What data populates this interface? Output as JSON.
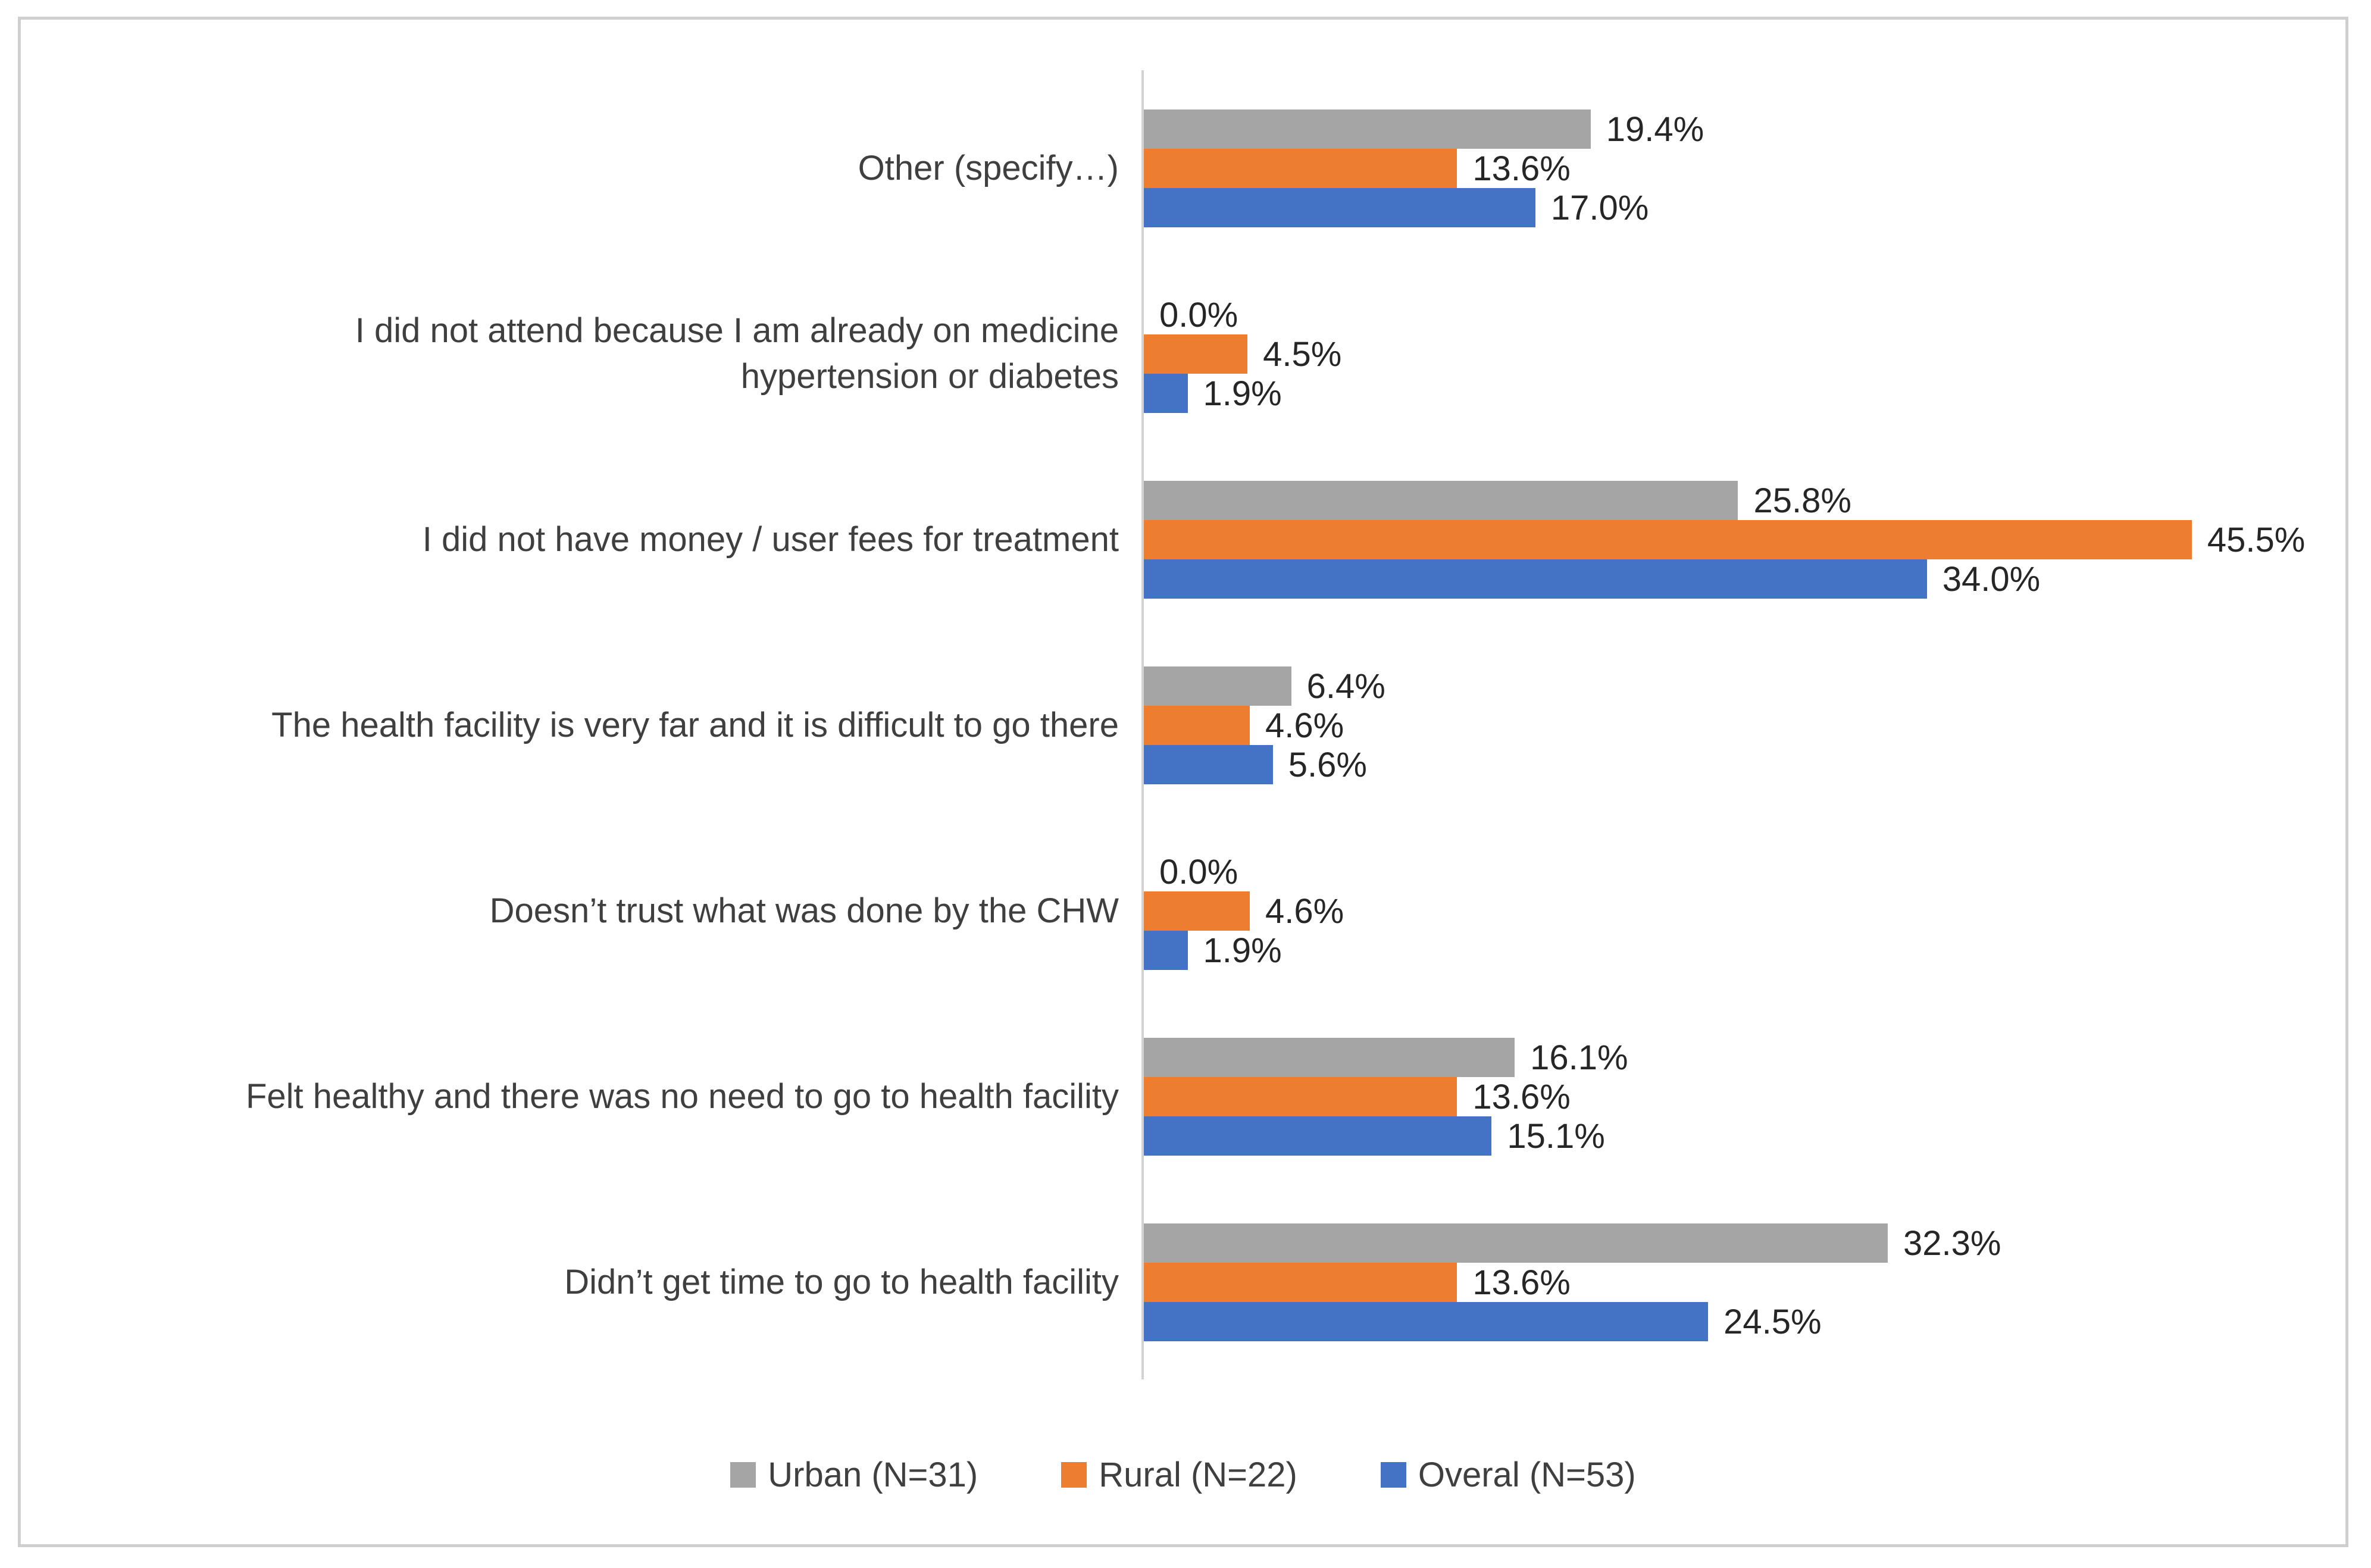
{
  "chart_data": {
    "type": "bar",
    "orientation": "horizontal",
    "title": "",
    "xlabel": "",
    "ylabel": "",
    "xlim": [
      0,
      52
    ],
    "grid": false,
    "axis_ticks_visible": false,
    "legend_position": "bottom",
    "value_label_format": "0.0%",
    "categories": [
      "Other (specify…)",
      "I did not attend because I am already on medicine\nhypertension or diabetes",
      "I did not have money / user fees for treatment",
      "The health facility is very far and it is difficult to go there",
      "Doesn’t trust what was done by the CHW",
      "Felt healthy and there was no need to go to health facility",
      "Didn’t get time to go to health facility"
    ],
    "series": [
      {
        "key": "urban",
        "name": "Urban (N=31)",
        "color": "#A5A5A5",
        "values": [
          19.4,
          0.0,
          25.8,
          6.4,
          0.0,
          16.1,
          32.3
        ]
      },
      {
        "key": "rural",
        "name": "Rural (N=22)",
        "color": "#ED7D31",
        "values": [
          13.6,
          4.5,
          45.5,
          4.6,
          4.6,
          13.6,
          13.6
        ]
      },
      {
        "key": "overal",
        "name": "Overal (N=53)",
        "color": "#4472C4",
        "values": [
          17.0,
          1.9,
          34.0,
          5.6,
          1.9,
          15.1,
          24.5
        ]
      }
    ],
    "colors": {
      "frame_border": "#cfcfcf",
      "axis_line": "#d2d2d2",
      "category_text": "#3f3f3f",
      "value_text": "#262626"
    }
  }
}
